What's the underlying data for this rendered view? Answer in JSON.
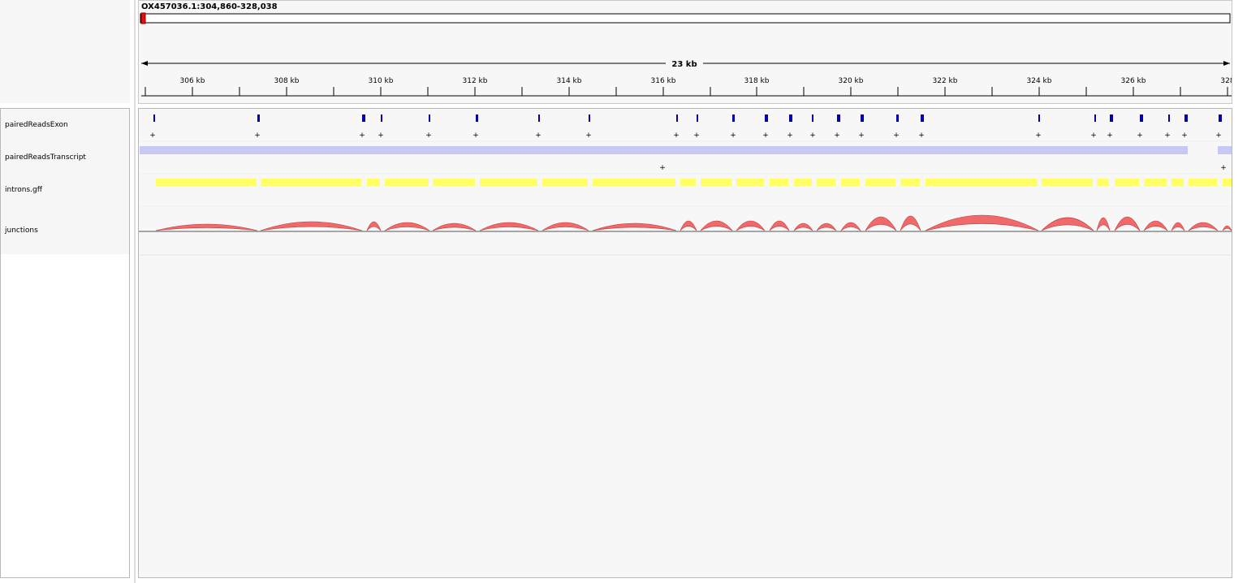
{
  "locus": "OX457036.1:304,860-328,038",
  "span_label": "23 kb",
  "ruler": {
    "start_bp": 304860,
    "end_bp": 328038,
    "tick_labels": [
      "306 kb",
      "308 kb",
      "310 kb",
      "312 kb",
      "314 kb",
      "316 kb",
      "318 kb",
      "320 kb",
      "322 kb",
      "324 kb",
      "326 kb",
      "328"
    ]
  },
  "tracks": {
    "exon": {
      "name": "pairedReadsExon",
      "color": "#0000b2"
    },
    "transcript": {
      "name": "pairedReadsTranscript",
      "color": "#c8c8f5"
    },
    "introns": {
      "name": "introns.gff",
      "color": "#ffff66"
    },
    "junctions": {
      "name": "junctions",
      "color": "#f0696b"
    }
  },
  "colors": {
    "region_marker": "#e01010"
  }
}
